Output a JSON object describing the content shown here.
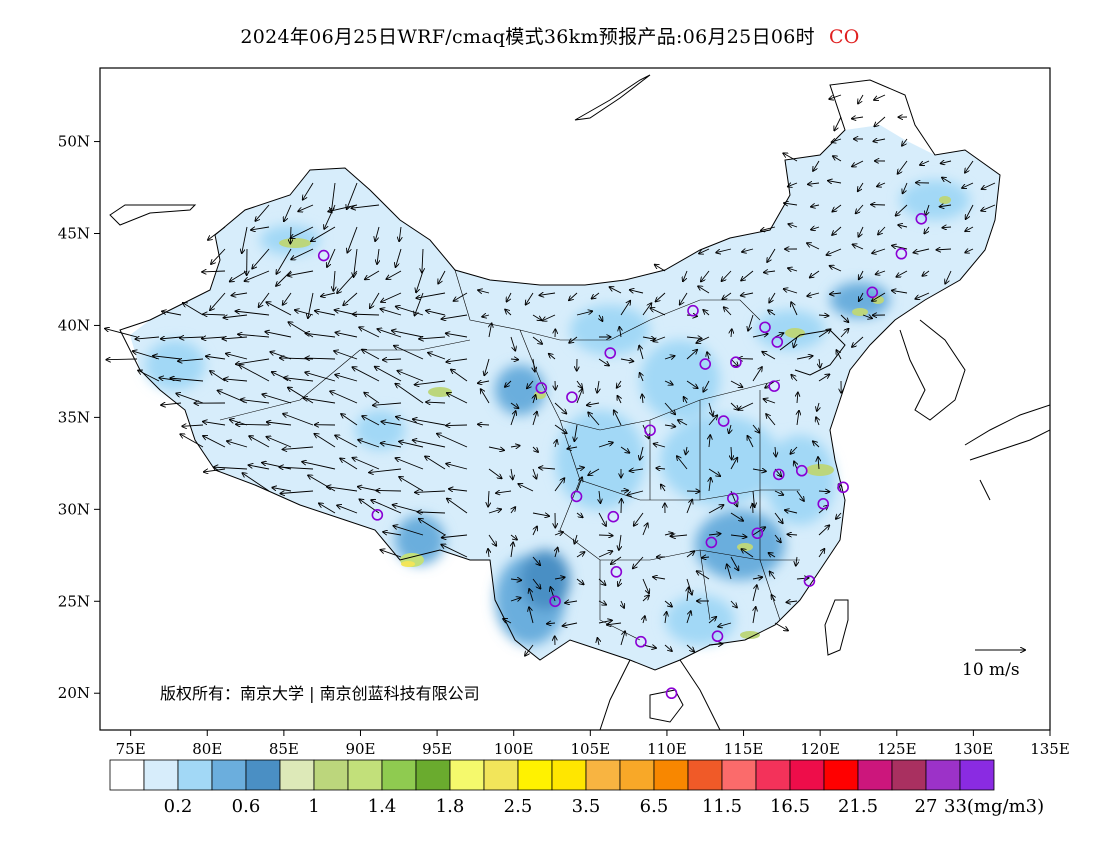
{
  "title": {
    "main": "2024年06月25日WRF/cmaq模式36km预报产品:06月25日06时",
    "species": "CO"
  },
  "map": {
    "lon_ticks": [
      "75E",
      "80E",
      "85E",
      "90E",
      "95E",
      "100E",
      "105E",
      "110E",
      "115E",
      "120E",
      "125E",
      "130E",
      "135E"
    ],
    "lat_ticks": [
      "50N",
      "45N",
      "40N",
      "35N",
      "30N",
      "25N",
      "20N"
    ],
    "lon_range": [
      73,
      135
    ],
    "lat_range": [
      18,
      54
    ],
    "copyright": "版权所有：南京大学 | 南京创蓝科技有限公司",
    "wind_reference": "10 m/s"
  },
  "colorbar": {
    "colors": [
      "#ffffff",
      "#d7edfb",
      "#a2d8f6",
      "#6baedd",
      "#4a8fc4",
      "#dde9b8",
      "#bcd67c",
      "#c2e07a",
      "#8fcb50",
      "#6aab2e",
      "#f5f96c",
      "#f2e55a",
      "#fff200",
      "#ffe600",
      "#f8b441",
      "#f8a828",
      "#f88700",
      "#f05a28",
      "#fb6b6b",
      "#f3325a",
      "#ee0d4a",
      "#ff0000",
      "#cc167c",
      "#a93060",
      "#9c32c8",
      "#8a2be2"
    ],
    "labels": [
      {
        "text": "0.2",
        "boundary": 2
      },
      {
        "text": "0.6",
        "boundary": 4
      },
      {
        "text": "1",
        "boundary": 6
      },
      {
        "text": "1.4",
        "boundary": 8
      },
      {
        "text": "1.8",
        "boundary": 10
      },
      {
        "text": "2.5",
        "boundary": 12
      },
      {
        "text": "3.5",
        "boundary": 14
      },
      {
        "text": "6.5",
        "boundary": 16
      },
      {
        "text": "11.5",
        "boundary": 18
      },
      {
        "text": "16.5",
        "boundary": 20
      },
      {
        "text": "21.5",
        "boundary": 22
      },
      {
        "text": "27",
        "boundary": 24
      },
      {
        "text": "33(mg/m3)",
        "boundary": 26
      }
    ]
  },
  "stations": [
    [
      87.6,
      43.8
    ],
    [
      126.6,
      45.8
    ],
    [
      125.3,
      43.9
    ],
    [
      123.4,
      41.8
    ],
    [
      116.4,
      39.9
    ],
    [
      117.2,
      39.1
    ],
    [
      112.5,
      37.9
    ],
    [
      114.5,
      38.0
    ],
    [
      111.7,
      40.8
    ],
    [
      106.3,
      38.5
    ],
    [
      103.8,
      36.1
    ],
    [
      101.8,
      36.6
    ],
    [
      108.9,
      34.3
    ],
    [
      113.7,
      34.8
    ],
    [
      117.0,
      36.7
    ],
    [
      117.3,
      31.9
    ],
    [
      118.8,
      32.1
    ],
    [
      121.5,
      31.2
    ],
    [
      120.2,
      30.3
    ],
    [
      114.3,
      30.6
    ],
    [
      112.9,
      28.2
    ],
    [
      115.9,
      28.7
    ],
    [
      119.3,
      26.1
    ],
    [
      113.3,
      23.1
    ],
    [
      108.3,
      22.8
    ],
    [
      110.3,
      20.0
    ],
    [
      106.7,
      26.6
    ],
    [
      102.7,
      25.0
    ],
    [
      104.1,
      30.7
    ],
    [
      106.5,
      29.6
    ],
    [
      91.1,
      29.7
    ]
  ]
}
